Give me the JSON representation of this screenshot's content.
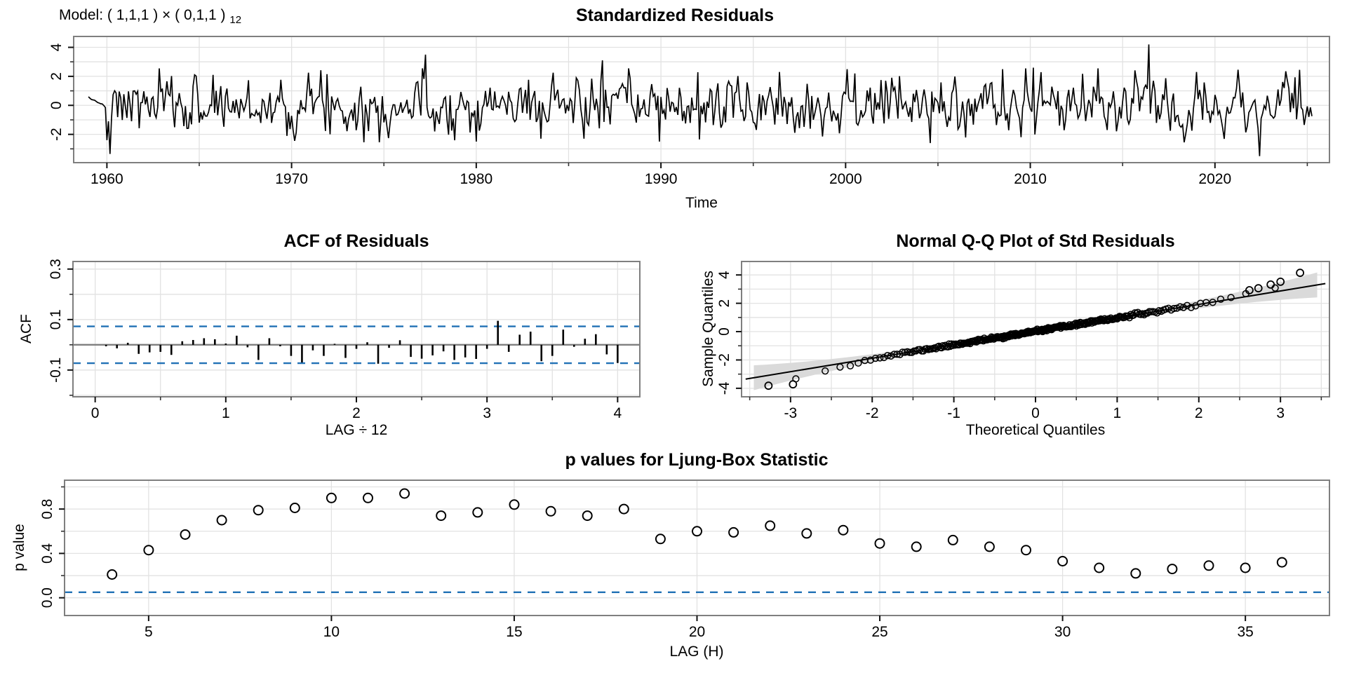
{
  "figure": {
    "model_label": {
      "prefix": "Model: ( 1,1,1 ) × ( 0,1,1 )",
      "subscript": "12"
    },
    "colors": {
      "background": "#ffffff",
      "grid": "#e2e2e2",
      "panel_border": "#7f7f7f",
      "zero_line": "#7f7f7f",
      "dashed_ref": "#2171b5",
      "data": "#000000",
      "qq_band": "#dadada"
    }
  },
  "chart_data": [
    {
      "type": "line",
      "name": "standardized-residuals",
      "title": "Standardized Residuals",
      "xlabel": "Time",
      "xlim": [
        1958.2,
        2026.2
      ],
      "ylim": [
        -3.95,
        4.75
      ],
      "x_tick_labels": [
        1960,
        1970,
        1980,
        1990,
        2000,
        2010,
        2020
      ],
      "x_minor_step": 5,
      "y_tick_labels": [
        -2,
        0,
        2,
        4
      ],
      "series_params": {
        "start": 1959.0,
        "end": 2025.33,
        "points_per_year": 12,
        "n": 796,
        "seed": 7,
        "noise_sd": 0.92,
        "ar": 0.3,
        "clamp": 2.55,
        "initial_segment": {
          "from": 1959.0,
          "to": 1959.83,
          "start_value": 0.55,
          "end_value": 0.0
        },
        "notable_points": [
          [
            1959.92,
            -0.15
          ],
          [
            1960.0,
            -2.4
          ],
          [
            1960.08,
            -1.1
          ],
          [
            1960.17,
            -3.35
          ],
          [
            1960.25,
            -0.85
          ],
          [
            1965.75,
            2.1
          ],
          [
            1971.92,
            2.15
          ],
          [
            1973.92,
            -2.55
          ],
          [
            1977.25,
            3.5
          ],
          [
            1983.5,
            -2.3
          ],
          [
            1984.17,
            2.25
          ],
          [
            1986.83,
            3.1
          ],
          [
            1989.92,
            -2.5
          ],
          [
            1992.08,
            -2.35
          ],
          [
            1996.42,
            2.3
          ],
          [
            2000.5,
            2.2
          ],
          [
            2004.58,
            -2.6
          ],
          [
            2008.5,
            2.5
          ],
          [
            2010.2,
            2.6
          ],
          [
            2016.42,
            4.2
          ],
          [
            2019.0,
            2.3
          ],
          [
            2022.42,
            -3.5
          ],
          [
            2023.83,
            2.35
          ],
          [
            2024.58,
            2.45
          ]
        ]
      }
    },
    {
      "type": "bar",
      "name": "acf-of-residuals",
      "title": "ACF of Residuals",
      "xlabel": "LAG ÷ 12",
      "ylabel": "ACF",
      "xlim": [
        -0.17,
        4.17
      ],
      "ylim": [
        -0.206,
        0.33
      ],
      "x_tick_labels": [
        0,
        1,
        2,
        3,
        4
      ],
      "y_tick_labels": [
        "-0.1",
        "0.1",
        "0.3"
      ],
      "confidence_level": 0.073,
      "lags_per_unit": 12,
      "values": [
        -0.006,
        -0.014,
        0.008,
        -0.036,
        -0.03,
        -0.028,
        -0.04,
        0.014,
        0.019,
        0.026,
        0.022,
        0.005,
        0.036,
        -0.01,
        -0.06,
        0.026,
        -0.006,
        -0.044,
        -0.07,
        -0.022,
        -0.044,
        0.004,
        -0.052,
        -0.016,
        0.01,
        -0.075,
        -0.012,
        0.018,
        -0.048,
        -0.055,
        -0.042,
        -0.026,
        -0.06,
        -0.05,
        -0.056,
        -0.016,
        0.095,
        -0.028,
        0.04,
        0.052,
        -0.065,
        -0.044,
        0.06,
        -0.008,
        0.024,
        0.042,
        -0.038,
        -0.072
      ]
    },
    {
      "type": "scatter",
      "name": "normal-qq-plot",
      "title": "Normal Q-Q Plot of Std Residuals",
      "xlabel": "Theoretical Quantiles",
      "ylabel": "Sample Quantiles",
      "xlim": [
        -3.6,
        3.6
      ],
      "ylim": [
        -4.6,
        4.95
      ],
      "x_tick_labels": [
        -3,
        -2,
        -1,
        0,
        1,
        2,
        3
      ],
      "y_tick_labels": [
        -4,
        -2,
        0,
        2,
        4
      ],
      "qq_params": {
        "n_points": 300,
        "seed": 11,
        "jitter_sd": 0.05,
        "line": {
          "slope": 0.95,
          "intercept": 0.02
        },
        "band_halfwidth": {
          "base": 0.14,
          "cubic": 0.018
        },
        "tail_dev": {
          "neg_start": 1.6,
          "neg_coef": 0.32,
          "neg_pow": 1.6,
          "pos_start": 1.9,
          "pos_coef": 0.3,
          "pos_pow": 1.5
        },
        "outliers": [
          [
            -3.27,
            -3.82
          ],
          [
            -2.97,
            -3.72
          ],
          [
            2.62,
            2.92
          ],
          [
            2.73,
            3.06
          ],
          [
            2.88,
            3.32
          ],
          [
            3.0,
            3.52
          ],
          [
            3.24,
            4.15
          ]
        ]
      }
    },
    {
      "type": "scatter",
      "name": "ljung-box-pvalues",
      "title": "p values for Ljung-Box Statistic",
      "xlabel": "LAG (H)",
      "ylabel": "p value",
      "xlim": [
        2.7,
        37.3
      ],
      "ylim": [
        -0.16,
        1.06
      ],
      "x_tick_labels": [
        5,
        10,
        15,
        20,
        25,
        30,
        35
      ],
      "y_tick_labels": [
        "0.0",
        "0.4",
        "0.8"
      ],
      "significance_line": 0.05,
      "lags": [
        4,
        5,
        6,
        7,
        8,
        9,
        10,
        11,
        12,
        13,
        14,
        15,
        16,
        17,
        18,
        19,
        20,
        21,
        22,
        23,
        24,
        25,
        26,
        27,
        28,
        29,
        30,
        31,
        32,
        33,
        34,
        35,
        36
      ],
      "values": [
        0.21,
        0.43,
        0.57,
        0.7,
        0.79,
        0.81,
        0.9,
        0.9,
        0.94,
        0.74,
        0.77,
        0.84,
        0.78,
        0.74,
        0.8,
        0.53,
        0.6,
        0.59,
        0.65,
        0.58,
        0.61,
        0.49,
        0.46,
        0.52,
        0.46,
        0.43,
        0.33,
        0.27,
        0.22,
        0.26,
        0.29,
        0.27,
        0.32
      ]
    }
  ]
}
